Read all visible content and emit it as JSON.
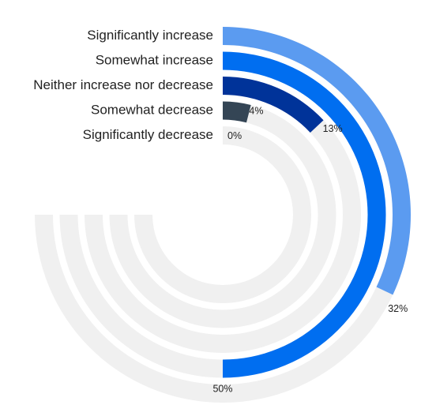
{
  "chart_data": {
    "type": "radial-bar",
    "title": "",
    "unit": "%",
    "max_value": 100,
    "track_color": "#f0f0f0",
    "series": [
      {
        "label": "Significantly increase",
        "value": 32,
        "value_label": "32%",
        "color": "#5b9bf0"
      },
      {
        "label": "Somewhat increase",
        "value": 50,
        "value_label": "50%",
        "color": "#006ef0"
      },
      {
        "label": "Neither increase nor decrease",
        "value": 13,
        "value_label": "13%",
        "color": "#003399"
      },
      {
        "label": "Somewhat decrease",
        "value": 4,
        "value_label": "4%",
        "color": "#344555"
      },
      {
        "label": "Significantly decrease",
        "value": 0,
        "value_label": "0%",
        "color": "#a0a8b0"
      }
    ]
  }
}
